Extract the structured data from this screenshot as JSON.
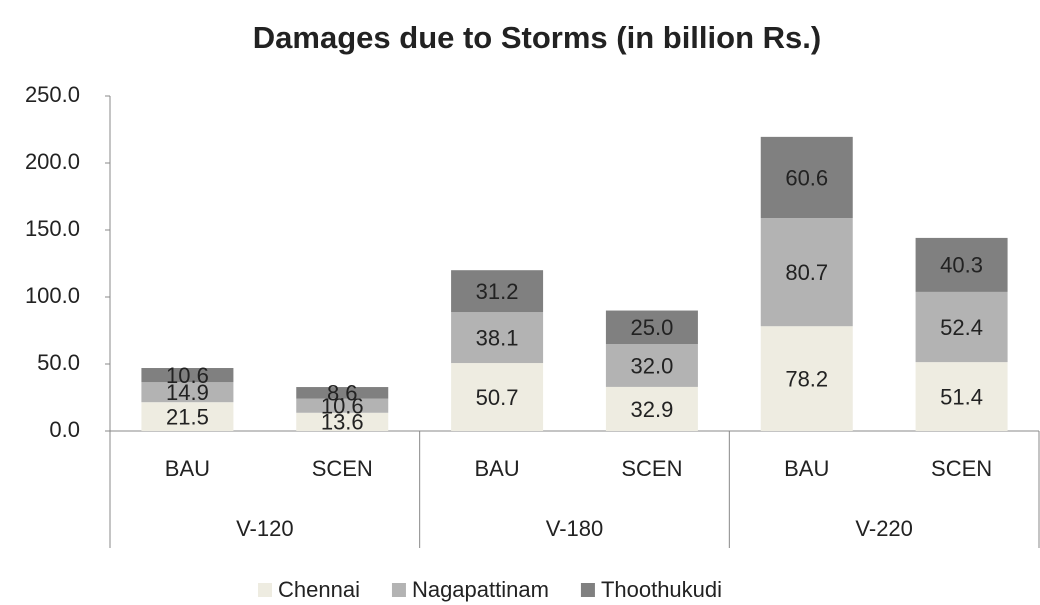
{
  "chart_data": {
    "type": "stacked_bar",
    "title": "Damages due to Storms (in billion Rs.)",
    "categories": [
      "BAU",
      "SCEN",
      "BAU",
      "SCEN",
      "BAU",
      "SCEN"
    ],
    "groups": [
      "V-120",
      "V-180",
      "V-220"
    ],
    "series": [
      {
        "name": "Chennai",
        "color": "#eeece1",
        "values": [
          21.5,
          13.6,
          50.7,
          32.9,
          78.2,
          51.4
        ],
        "value_labels": [
          "21.5",
          "13.6",
          "50.7",
          "32.9",
          "78.2",
          "51.4"
        ]
      },
      {
        "name": "Nagapattinam",
        "color": "#b3b3b3",
        "values": [
          14.9,
          10.6,
          38.1,
          32.0,
          80.7,
          52.4
        ],
        "value_labels": [
          "14.9",
          "10.6",
          "38.1",
          "32.0",
          "80.7",
          "52.4"
        ]
      },
      {
        "name": "Thoothukudi",
        "color": "#808080",
        "values": [
          10.6,
          8.6,
          31.2,
          25.0,
          60.6,
          40.3
        ],
        "value_labels": [
          "10.6",
          "8.6",
          "31.2",
          "25.0",
          "60.6",
          "40.3"
        ]
      }
    ],
    "ylim": [
      0,
      250
    ],
    "yticks": [
      {
        "value": 0,
        "label": "0.0"
      },
      {
        "value": 50,
        "label": "50.0"
      },
      {
        "value": 100,
        "label": "100.0"
      },
      {
        "value": 150,
        "label": "150.0"
      },
      {
        "value": 200,
        "label": "200.0"
      },
      {
        "value": 250,
        "label": "250.0"
      }
    ],
    "legend": "bottom"
  }
}
